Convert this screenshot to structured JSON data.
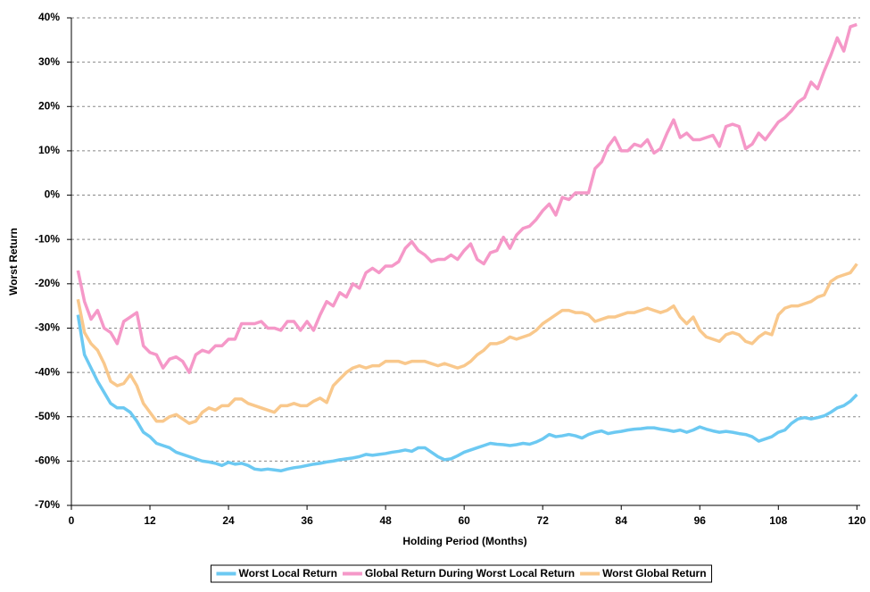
{
  "chart_data": {
    "type": "line",
    "x_label": "Holding Period (Months)",
    "y_label": "Worst Return",
    "x": [
      1,
      2,
      3,
      4,
      5,
      6,
      7,
      8,
      9,
      10,
      11,
      12,
      13,
      14,
      15,
      16,
      17,
      18,
      19,
      20,
      21,
      22,
      23,
      24,
      25,
      26,
      27,
      28,
      29,
      30,
      31,
      32,
      33,
      34,
      35,
      36,
      37,
      38,
      39,
      40,
      41,
      42,
      43,
      44,
      45,
      46,
      47,
      48,
      49,
      50,
      51,
      52,
      53,
      54,
      55,
      56,
      57,
      58,
      59,
      60,
      61,
      62,
      63,
      64,
      65,
      66,
      67,
      68,
      69,
      70,
      71,
      72,
      73,
      74,
      75,
      76,
      77,
      78,
      79,
      80,
      81,
      82,
      83,
      84,
      85,
      86,
      87,
      88,
      89,
      90,
      91,
      92,
      93,
      94,
      95,
      96,
      97,
      98,
      99,
      100,
      101,
      102,
      103,
      104,
      105,
      106,
      107,
      108,
      109,
      110,
      111,
      112,
      113,
      114,
      115,
      116,
      117,
      118,
      119,
      120
    ],
    "series": [
      {
        "name": "Worst Local Return",
        "color": "#6cc9f2",
        "values": [
          -27,
          -36,
          -39,
          -42,
          -44.5,
          -47,
          -48,
          -48,
          -49,
          -51,
          -53.5,
          -54.5,
          -56,
          -56.5,
          -57,
          -58,
          -58.5,
          -59,
          -59.5,
          -60,
          -60.2,
          -60.5,
          -61,
          -60.3,
          -60.7,
          -60.5,
          -61,
          -61.8,
          -62,
          -61.8,
          -62,
          -62.2,
          -61.8,
          -61.5,
          -61.3,
          -61,
          -60.7,
          -60.5,
          -60.2,
          -60,
          -59.7,
          -59.5,
          -59.3,
          -59,
          -58.5,
          -58.7,
          -58.5,
          -58.3,
          -58,
          -57.8,
          -57.5,
          -57.8,
          -57,
          -57,
          -58,
          -59,
          -59.7,
          -59.5,
          -58.8,
          -58,
          -57.5,
          -57,
          -56.5,
          -56,
          -56.2,
          -56.3,
          -56.5,
          -56.3,
          -56,
          -56.2,
          -55.7,
          -55,
          -54,
          -54.5,
          -54.3,
          -54,
          -54.3,
          -54.8,
          -54,
          -53.5,
          -53.2,
          -53.8,
          -53.5,
          -53.3,
          -53,
          -52.8,
          -52.7,
          -52.5,
          -52.5,
          -52.8,
          -53,
          -53.3,
          -53,
          -53.5,
          -53,
          -52.3,
          -52.8,
          -53.2,
          -53.5,
          -53.3,
          -53.5,
          -53.8,
          -54,
          -54.5,
          -55.5,
          -55,
          -54.5,
          -53.5,
          -53,
          -51.5,
          -50.5,
          -50.2,
          -50.5,
          -50.2,
          -49.8,
          -49,
          -48,
          -47.5,
          -46.5,
          -45
        ]
      },
      {
        "name": "Global Return During Worst Local Return",
        "color": "#f598c8",
        "values": [
          -17,
          -24,
          -28,
          -26,
          -30,
          -31,
          -33.5,
          -28.5,
          -27.5,
          -26.5,
          -34,
          -35.5,
          -36,
          -39,
          -37,
          -36.5,
          -37.5,
          -40,
          -36,
          -35,
          -35.5,
          -34,
          -34,
          -32.5,
          -32.5,
          -29,
          -29,
          -29,
          -28.5,
          -30,
          -30,
          -30.5,
          -28.5,
          -28.5,
          -30.5,
          -28.5,
          -30.5,
          -27,
          -24,
          -25,
          -22,
          -23,
          -20,
          -21,
          -17.5,
          -16.5,
          -17.5,
          -16,
          -16,
          -15,
          -12,
          -10.5,
          -12.5,
          -13.5,
          -15,
          -14.5,
          -14.5,
          -13.5,
          -14.5,
          -12.5,
          -11,
          -14.5,
          -15.5,
          -13,
          -12.5,
          -9.5,
          -12,
          -9,
          -7.5,
          -7,
          -5.5,
          -3.5,
          -2,
          -4.5,
          -0.5,
          -1,
          0.5,
          0.5,
          0.5,
          6,
          7.5,
          11,
          13,
          10,
          10,
          11.5,
          11,
          12.5,
          9.5,
          10.5,
          14,
          17,
          13,
          14,
          12.5,
          12.5,
          13,
          13.5,
          11,
          15.5,
          16,
          15.5,
          10.5,
          11.5,
          14,
          12.5,
          14.5,
          16.5,
          17.5,
          19,
          21,
          22,
          25.5,
          24,
          28,
          31.5,
          35.5,
          32.5,
          38,
          38.5
        ]
      },
      {
        "name": "Worst Global Return",
        "color": "#f9c88c",
        "values": [
          -23.5,
          -31,
          -33.5,
          -35,
          -38,
          -42,
          -43,
          -42.5,
          -40.5,
          -43,
          -47,
          -49,
          -51,
          -51,
          -50,
          -49.5,
          -50.5,
          -51.5,
          -51,
          -49,
          -48,
          -48.5,
          -47.5,
          -47.5,
          -46,
          -46,
          -47,
          -47.5,
          -48,
          -48.5,
          -49,
          -47.5,
          -47.5,
          -47,
          -47.5,
          -47.5,
          -46.5,
          -45.8,
          -46.8,
          -43,
          -41.5,
          -40,
          -39,
          -38.5,
          -39,
          -38.5,
          -38.5,
          -37.5,
          -37.5,
          -37.5,
          -38,
          -37.5,
          -37.5,
          -37.5,
          -38,
          -38.5,
          -38,
          -38.5,
          -39,
          -38.5,
          -37.5,
          -36,
          -35,
          -33.5,
          -33.5,
          -33,
          -32,
          -32.5,
          -32,
          -31.5,
          -30.5,
          -29,
          -28,
          -27,
          -26,
          -26,
          -26.5,
          -26.5,
          -27,
          -28.5,
          -28,
          -27.5,
          -27.5,
          -27,
          -26.5,
          -26.5,
          -26,
          -25.5,
          -26,
          -26.5,
          -26,
          -25,
          -27.5,
          -29,
          -27.5,
          -30.5,
          -32,
          -32.5,
          -33,
          -31.5,
          -31,
          -31.5,
          -33,
          -33.5,
          -32,
          -31,
          -31.5,
          -27,
          -25.5,
          -25,
          -25,
          -24.5,
          -24,
          -23,
          -22.5,
          -19.5,
          -18.5,
          -18,
          -17.5,
          -15.5
        ]
      }
    ],
    "xlim": [
      0,
      120.5
    ],
    "xticks": [
      0,
      12,
      24,
      36,
      48,
      60,
      72,
      84,
      96,
      108,
      120
    ],
    "ylim": [
      -70,
      40
    ],
    "yticks": [
      {
        "value": -70,
        "label": "-70%"
      },
      {
        "value": -60,
        "label": "-60%"
      },
      {
        "value": -50,
        "label": "-50%"
      },
      {
        "value": -40,
        "label": "-40%"
      },
      {
        "value": -30,
        "label": "-30%"
      },
      {
        "value": -20,
        "label": "-20%"
      },
      {
        "value": -10,
        "label": "-10%"
      },
      {
        "value": 0,
        "label": "0%"
      },
      {
        "value": 10,
        "label": "10%"
      },
      {
        "value": 20,
        "label": "20%"
      },
      {
        "value": 30,
        "label": "30%"
      },
      {
        "value": 40,
        "label": "40%"
      }
    ],
    "grid": true,
    "legend": "bottom"
  }
}
